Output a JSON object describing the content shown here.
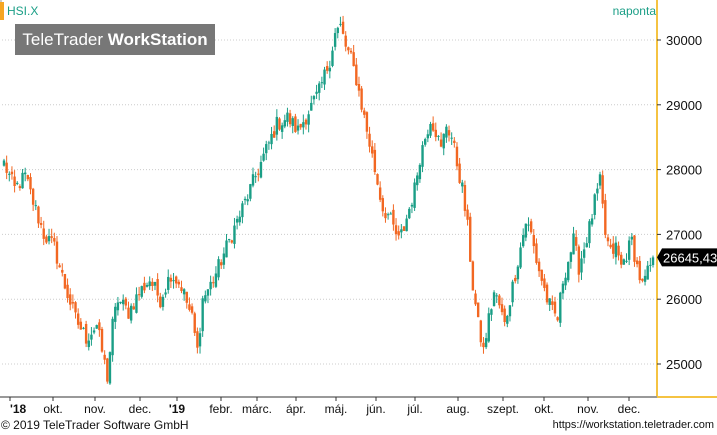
{
  "header": {
    "symbol": "HSI.X",
    "frequency": "naponta",
    "watermark_light": "TeleTrader",
    "watermark_bold": "WorkStation"
  },
  "footer": {
    "copyright": "© 2019 TeleTrader Software GmbH",
    "url": "https://workstation.teletrader.com"
  },
  "colors": {
    "up": "#1a9e86",
    "down": "#f26722",
    "axis_border": "#f5c342",
    "grid": "#cccccc",
    "last_price_bg": "#000000",
    "last_price_fg": "#ffffff",
    "text_accent": "#1a9e86"
  },
  "chart_data": {
    "type": "candlestick",
    "title": "",
    "xlabel": "",
    "ylabel": "",
    "ylim": [
      24550,
      30250
    ],
    "grid": true,
    "y_ticks": [
      25000,
      26000,
      27000,
      28000,
      29000,
      30000
    ],
    "x_tick_labels": [
      "'18",
      "okt.",
      "nov.",
      "dec.",
      "'19",
      "febr.",
      "márc.",
      "ápr.",
      "máj.",
      "jún.",
      "júl.",
      "aug.",
      "szept.",
      "okt.",
      "nov.",
      "dec."
    ],
    "last_price_label": "26645,43",
    "last_price": 26645.43,
    "close_path": [
      [
        0,
        28100
      ],
      [
        4,
        27700
      ],
      [
        8,
        27900
      ],
      [
        11,
        27500
      ],
      [
        15,
        27000
      ],
      [
        19,
        26800
      ],
      [
        23,
        26200
      ],
      [
        27,
        25700
      ],
      [
        31,
        25400
      ],
      [
        35,
        25600
      ],
      [
        37,
        25200
      ],
      [
        39,
        24800
      ],
      [
        41,
        25600
      ],
      [
        43,
        26000
      ],
      [
        47,
        25800
      ],
      [
        51,
        26100
      ],
      [
        55,
        26300
      ],
      [
        59,
        26000
      ],
      [
        63,
        26400
      ],
      [
        67,
        26200
      ],
      [
        71,
        25700
      ],
      [
        73,
        25200
      ],
      [
        75,
        26000
      ],
      [
        79,
        26300
      ],
      [
        83,
        26700
      ],
      [
        87,
        27100
      ],
      [
        91,
        27500
      ],
      [
        95,
        27900
      ],
      [
        99,
        28300
      ],
      [
        103,
        28700
      ],
      [
        107,
        28800
      ],
      [
        111,
        28600
      ],
      [
        115,
        28900
      ],
      [
        119,
        29200
      ],
      [
        123,
        29700
      ],
      [
        125,
        30100
      ],
      [
        127,
        30200
      ],
      [
        129,
        29900
      ],
      [
        131,
        29700
      ],
      [
        133,
        29400
      ],
      [
        135,
        29000
      ],
      [
        137,
        28600
      ],
      [
        139,
        28200
      ],
      [
        141,
        27800
      ],
      [
        143,
        27400
      ],
      [
        145,
        27300
      ],
      [
        147,
        27100
      ],
      [
        149,
        26900
      ],
      [
        151,
        27100
      ],
      [
        153,
        27400
      ],
      [
        155,
        27700
      ],
      [
        157,
        28200
      ],
      [
        159,
        28500
      ],
      [
        161,
        28800
      ],
      [
        163,
        28600
      ],
      [
        165,
        28300
      ],
      [
        167,
        28700
      ],
      [
        169,
        28500
      ],
      [
        171,
        28100
      ],
      [
        173,
        27700
      ],
      [
        175,
        27100
      ],
      [
        177,
        26200
      ],
      [
        179,
        25600
      ],
      [
        181,
        25200
      ],
      [
        183,
        25700
      ],
      [
        185,
        26100
      ],
      [
        187,
        25900
      ],
      [
        189,
        25600
      ],
      [
        191,
        26000
      ],
      [
        193,
        26400
      ],
      [
        195,
        26800
      ],
      [
        197,
        27200
      ],
      [
        199,
        27000
      ],
      [
        201,
        26600
      ],
      [
        203,
        26300
      ],
      [
        205,
        26000
      ],
      [
        207,
        25800
      ],
      [
        209,
        25700
      ],
      [
        211,
        26300
      ],
      [
        213,
        26600
      ],
      [
        215,
        26900
      ],
      [
        217,
        26500
      ],
      [
        219,
        26800
      ],
      [
        221,
        27100
      ],
      [
        223,
        27500
      ],
      [
        225,
        27800
      ],
      [
        227,
        27000
      ],
      [
        229,
        26700
      ],
      [
        231,
        26800
      ],
      [
        233,
        26500
      ],
      [
        235,
        26700
      ],
      [
        237,
        26900
      ],
      [
        239,
        26500
      ],
      [
        241,
        26200
      ],
      [
        243,
        26400
      ],
      [
        245,
        26645.43
      ]
    ]
  }
}
